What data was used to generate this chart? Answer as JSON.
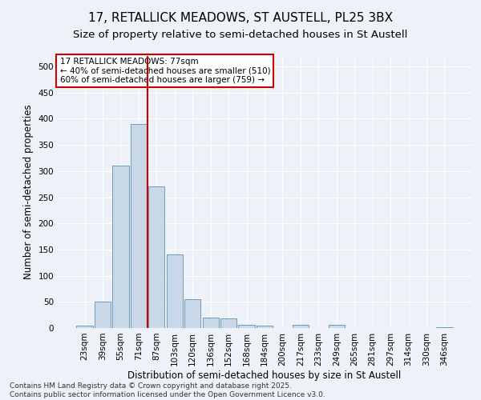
{
  "title": "17, RETALLICK MEADOWS, ST AUSTELL, PL25 3BX",
  "subtitle": "Size of property relative to semi-detached houses in St Austell",
  "xlabel": "Distribution of semi-detached houses by size in St Austell",
  "ylabel": "Number of semi-detached properties",
  "categories": [
    "23sqm",
    "39sqm",
    "55sqm",
    "71sqm",
    "87sqm",
    "103sqm",
    "120sqm",
    "136sqm",
    "152sqm",
    "168sqm",
    "184sqm",
    "200sqm",
    "217sqm",
    "233sqm",
    "249sqm",
    "265sqm",
    "281sqm",
    "297sqm",
    "314sqm",
    "330sqm",
    "346sqm"
  ],
  "values": [
    4,
    50,
    311,
    390,
    270,
    140,
    55,
    20,
    19,
    6,
    5,
    0,
    6,
    0,
    6,
    0,
    0,
    0,
    0,
    0,
    2
  ],
  "bar_color": "#c8d8e8",
  "bar_edge_color": "#5a90b8",
  "vline_pos": 3.5,
  "vline_color": "#cc0000",
  "annotation_title": "17 RETALLICK MEADOWS: 77sqm",
  "annotation_line1": "← 40% of semi-detached houses are smaller (510)",
  "annotation_line2": "60% of semi-detached houses are larger (759) →",
  "annotation_box_color": "#ffffff",
  "annotation_box_edge": "#cc0000",
  "ylim": [
    0,
    520
  ],
  "yticks": [
    0,
    50,
    100,
    150,
    200,
    250,
    300,
    350,
    400,
    450,
    500
  ],
  "footer_line1": "Contains HM Land Registry data © Crown copyright and database right 2025.",
  "footer_line2": "Contains public sector information licensed under the Open Government Licence v3.0.",
  "bg_color": "#eef2f8",
  "grid_color": "#ffffff",
  "title_fontsize": 11,
  "subtitle_fontsize": 9.5,
  "axis_label_fontsize": 8.5,
  "tick_fontsize": 7.5,
  "annotation_fontsize": 7.5,
  "footer_fontsize": 6.5
}
